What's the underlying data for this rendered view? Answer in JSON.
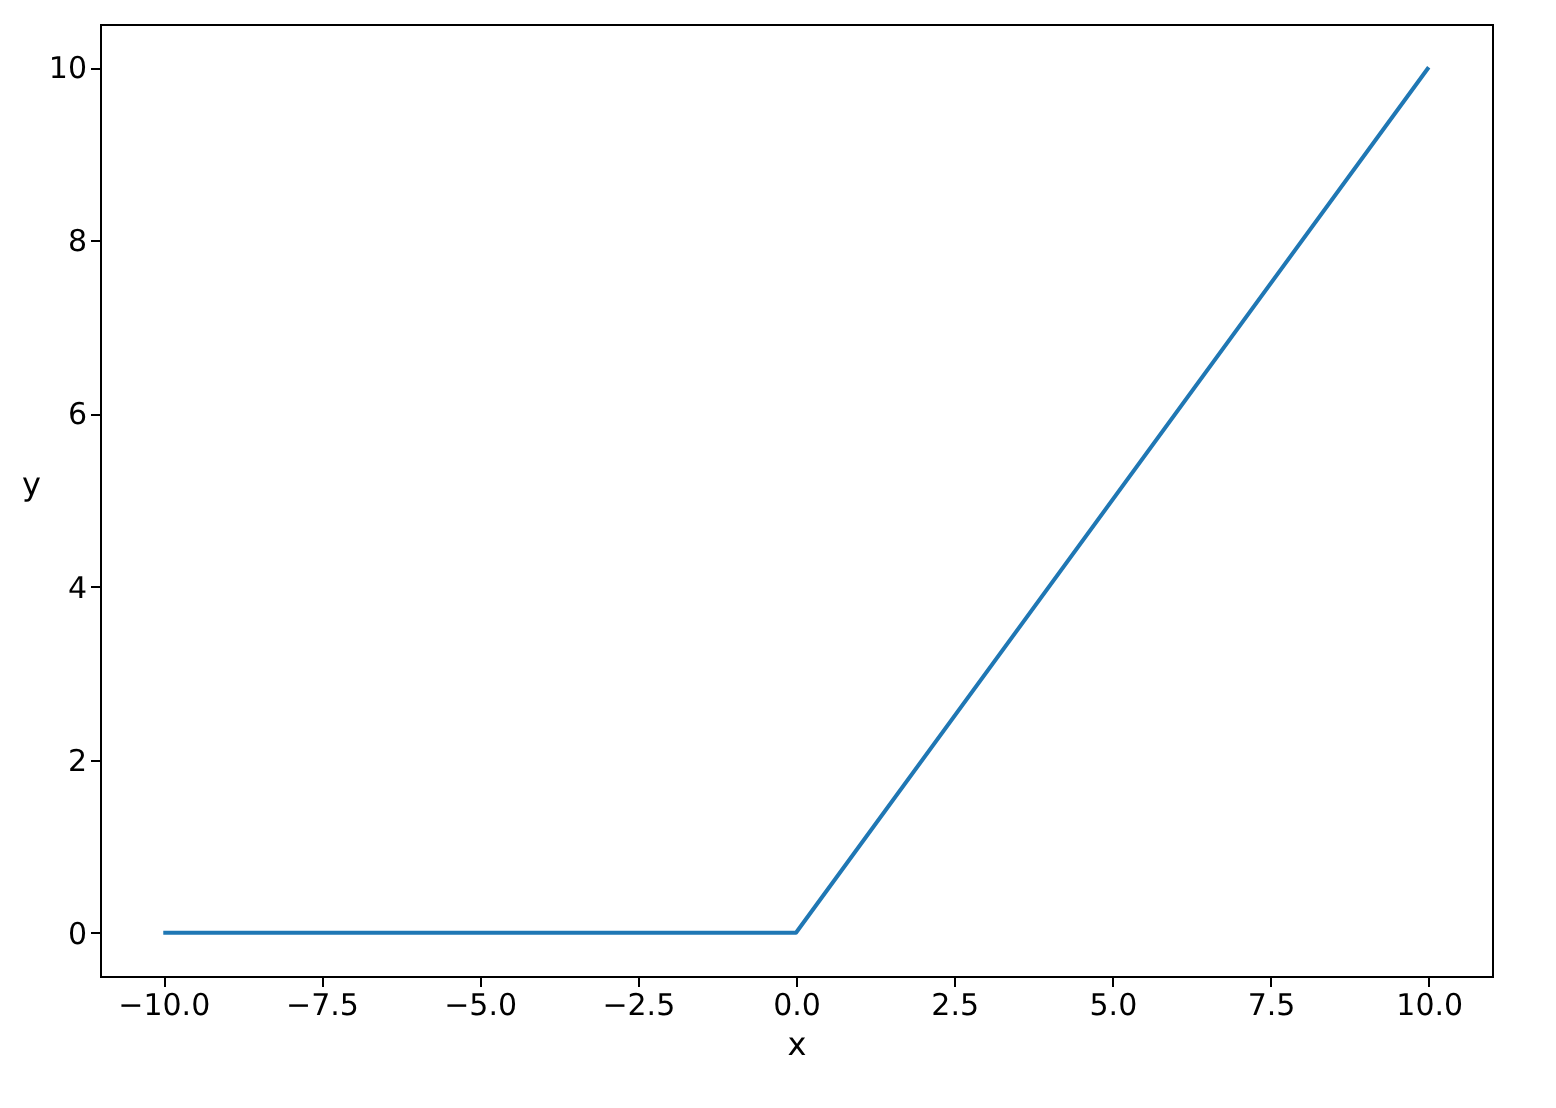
{
  "chart_data": {
    "type": "line",
    "xlabel": "x",
    "ylabel": "y",
    "x": [
      -10,
      0,
      10
    ],
    "series": [
      {
        "color": "#1f77b4",
        "values": [
          0,
          0,
          10
        ]
      }
    ],
    "xlim": [
      -11,
      11
    ],
    "ylim": [
      -0.5,
      10.5
    ],
    "xticks": [
      {
        "value": -10,
        "label": "−10.0"
      },
      {
        "value": -7.5,
        "label": "−7.5"
      },
      {
        "value": -5,
        "label": "−5.0"
      },
      {
        "value": -2.5,
        "label": "−2.5"
      },
      {
        "value": 0,
        "label": "0.0"
      },
      {
        "value": 2.5,
        "label": "2.5"
      },
      {
        "value": 5,
        "label": "5.0"
      },
      {
        "value": 7.5,
        "label": "7.5"
      },
      {
        "value": 10,
        "label": "10.0"
      }
    ],
    "yticks": [
      0,
      2,
      4,
      6,
      8,
      10
    ],
    "grid": false,
    "marker": "none",
    "line_style": "solid"
  }
}
